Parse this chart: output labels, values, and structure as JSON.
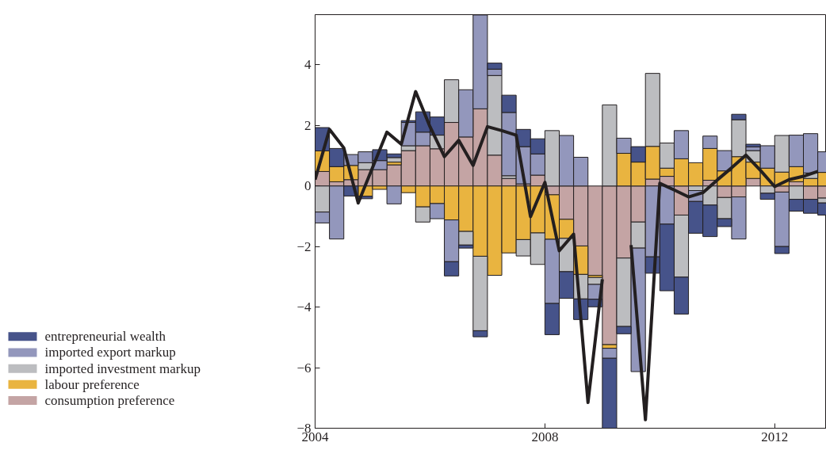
{
  "chart_data": {
    "type": "bar",
    "stacked": true,
    "legend": "bottom left",
    "grid": false,
    "x": [
      2004.125,
      2004.375,
      2004.625,
      2004.875,
      2005.125,
      2005.375,
      2005.625,
      2005.875,
      2006.125,
      2006.375,
      2006.625,
      2006.875,
      2007.125,
      2007.375,
      2007.625,
      2007.875,
      2008.125,
      2008.375,
      2008.625,
      2008.875,
      2009.125,
      2009.375,
      2009.625,
      2009.875,
      2010.125,
      2010.375,
      2010.625,
      2010.875,
      2011.125,
      2011.375,
      2011.625,
      2011.875,
      2012.125,
      2012.375,
      2012.625,
      2012.875
    ],
    "xlim": [
      2004,
      2012.9
    ],
    "xticks": [
      2004,
      2008,
      2012
    ],
    "ylim": [
      -8,
      5.66
    ],
    "yticks": [
      {
        "value": -8,
        "label": "−8"
      },
      {
        "value": -6,
        "label": "−6"
      },
      {
        "value": -4,
        "label": "−4"
      },
      {
        "value": -2,
        "label": "−2"
      },
      0,
      2,
      4
    ],
    "series": [
      {
        "name": "consumption preference",
        "color": "#c4a4a4",
        "values": [
          0.48,
          0.14,
          0.21,
          0.54,
          0.54,
          0.7,
          1.17,
          1.33,
          1.23,
          2.1,
          1.62,
          2.55,
          1.02,
          0.25,
          0.07,
          0.36,
          -0.29,
          -1.1,
          -1.98,
          -2.95,
          -5.24,
          -2.38,
          -1.19,
          0.23,
          0.32,
          -0.96,
          null,
          0.19,
          -0.38,
          -0.36,
          0.25,
          null,
          -0.2,
          0.14,
          -0.44,
          -0.4
        ]
      },
      {
        "name": "labour preference",
        "color": "#e9b440",
        "values": [
          0.68,
          0.5,
          0.47,
          -0.34,
          -0.11,
          0.09,
          -0.22,
          -0.69,
          -0.58,
          -1.12,
          -1.5,
          -2.32,
          -2.95,
          -2.21,
          -1.77,
          -1.55,
          -1.47,
          -0.63,
          -0.94,
          -0.07,
          -0.12,
          1.08,
          0.79,
          1.08,
          0.27,
          0.9,
          0.77,
          1.05,
          0.5,
          0.97,
          0.54,
          0.59,
          0.46,
          0.5,
          0.25,
          0.45
        ]
      },
      {
        "name": "imported investment markup",
        "color": "#bcbdc0",
        "values": [
          -0.86,
          null,
          null,
          0.23,
          null,
          0.15,
          0.16,
          -0.5,
          0.45,
          1.41,
          -0.45,
          -2.46,
          2.63,
          0.09,
          -0.54,
          -1.04,
          1.83,
          -1.1,
          -0.81,
          -0.23,
          2.68,
          -2.26,
          -0.86,
          2.41,
          0.83,
          -2.05,
          -0.15,
          -0.63,
          -0.7,
          1.22,
          0.38,
          -0.24,
          1.21,
          -0.44,
          0.18,
          -0.16
        ]
      },
      {
        "name": "imported export markup",
        "color": "#9397bc",
        "values": [
          -0.36,
          -1.75,
          0.36,
          0.36,
          0.3,
          -0.59,
          0.77,
          0.45,
          -0.5,
          -1.38,
          1.56,
          3.1,
          0.21,
          2.09,
          1.23,
          0.7,
          -2.12,
          1.67,
          0.95,
          -0.49,
          -0.33,
          0.5,
          -4.08,
          -2.34,
          -1.26,
          0.93,
          -0.36,
          0.41,
          0.67,
          -1.39,
          0.12,
          0.74,
          -1.8,
          1.04,
          1.3,
          0.68
        ]
      },
      {
        "name": "entrepreneurial wealth",
        "color": "#46538a",
        "values": [
          0.77,
          0.6,
          -0.33,
          -0.08,
          0.36,
          0.12,
          0.06,
          0.67,
          0.6,
          -0.47,
          -0.1,
          -0.2,
          0.2,
          0.57,
          0.57,
          0.5,
          -1.03,
          -0.88,
          -0.68,
          -0.25,
          -2.31,
          -0.24,
          0.51,
          -0.54,
          -2.2,
          -1.22,
          -1.05,
          -1.04,
          -0.26,
          0.18,
          0.09,
          -0.2,
          -0.23,
          -0.39,
          -0.46,
          -0.4
        ]
      },
      {
        "type": "line",
        "color": "#231f20",
        "x": [
          2004,
          2004.25,
          2004.5,
          2004.75,
          2005,
          2005.25,
          2005.5,
          2005.75,
          2006,
          2006.25,
          2006.5,
          2006.75,
          2007,
          2007.25,
          2007.5,
          2007.75,
          2008,
          2008.25,
          2008.5,
          2008.75,
          2009,
          2009.25,
          2009.5,
          2009.75,
          2010,
          2010.25,
          2010.5,
          2010.75,
          2011,
          2011.25,
          2011.5,
          2011.75,
          2012,
          2012.25,
          2012.5,
          2012.75
        ],
        "values": [
          0.21,
          1.87,
          1.26,
          -0.56,
          0.61,
          1.78,
          1.38,
          3.12,
          1.96,
          0.97,
          1.51,
          0.68,
          1.96,
          1.83,
          1.68,
          -1.01,
          0.12,
          -2.14,
          -1.59,
          -7.15,
          -3.08,
          null,
          -1.95,
          -7.72,
          0.09,
          -0.13,
          -0.36,
          -0.22,
          0.2,
          0.6,
          1.02,
          0.52,
          -0.02,
          0.21,
          0.32,
          0.48
        ]
      }
    ]
  }
}
